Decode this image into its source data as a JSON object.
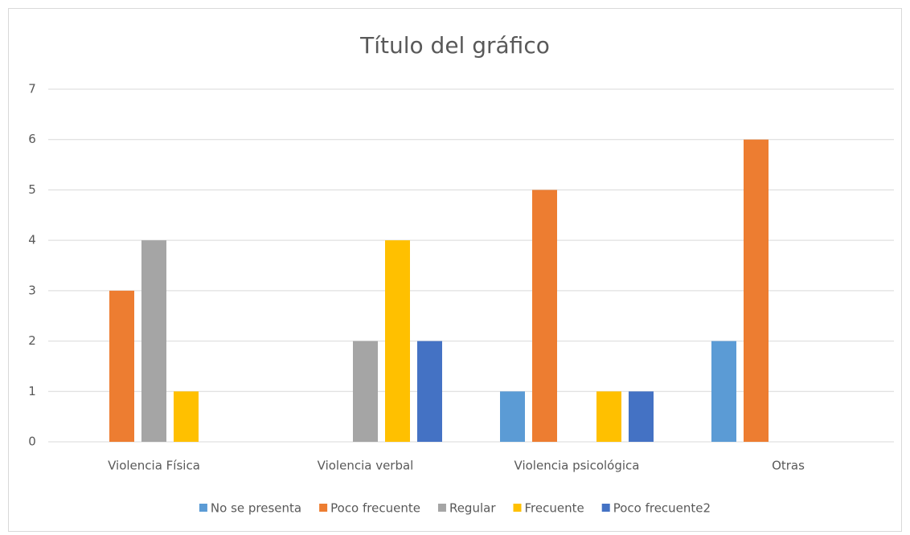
{
  "chart_data": {
    "type": "bar",
    "title": "Título del gráfico",
    "categories": [
      "Violencia Física",
      "Violencia verbal",
      "Violencia psicológica",
      "Otras"
    ],
    "series": [
      {
        "name": "No se presenta",
        "color": "#5b9bd5",
        "values": [
          0,
          0,
          1,
          2
        ]
      },
      {
        "name": "Poco frecuente",
        "color": "#ed7d31",
        "values": [
          3,
          0,
          5,
          6
        ]
      },
      {
        "name": "Regular",
        "color": "#a5a5a5",
        "values": [
          4,
          2,
          0,
          0
        ]
      },
      {
        "name": "Frecuente",
        "color": "#ffc000",
        "values": [
          1,
          4,
          1,
          0
        ]
      },
      {
        "name": "Poco frecuente2",
        "color": "#4472c4",
        "values": [
          0,
          2,
          1,
          0
        ]
      }
    ],
    "ylim": [
      0,
      7
    ],
    "yticks": [
      0,
      1,
      2,
      3,
      4,
      5,
      6,
      7
    ],
    "grid": true,
    "legend": "bottom"
  }
}
